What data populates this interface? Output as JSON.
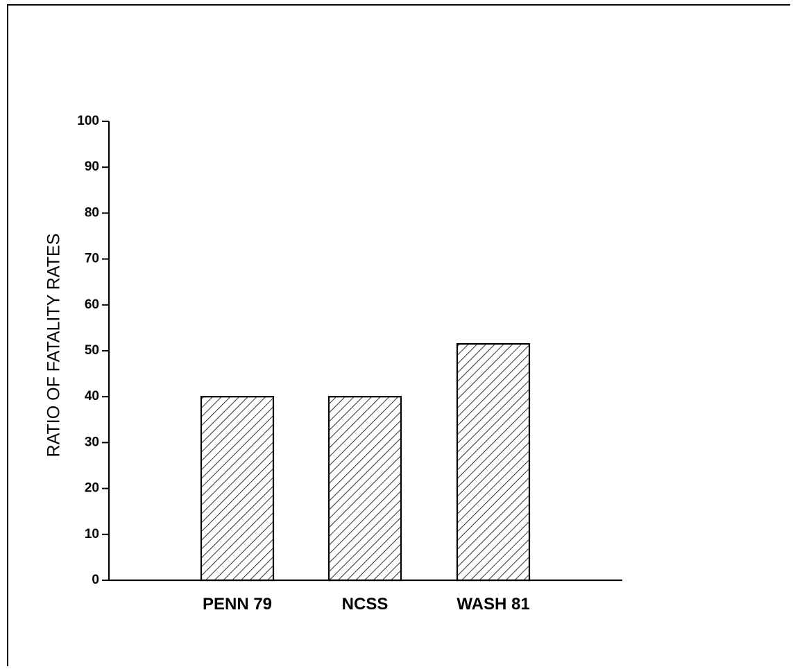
{
  "chart_data": {
    "type": "bar",
    "title": "",
    "xlabel": "",
    "ylabel": "RATIO OF FATALITY RATES",
    "categories": [
      "PENN 79",
      "NCSS",
      "WASH 81"
    ],
    "values": [
      40,
      40,
      51.5
    ],
    "ylim": [
      0,
      100
    ],
    "yticks": [
      0,
      10,
      20,
      30,
      40,
      50,
      60,
      70,
      80,
      90,
      100
    ],
    "grid": false,
    "fill_pattern": "diagonal-hatch",
    "colors": {
      "bar_fill": "#ffffff",
      "hatch": "#000000",
      "axis": "#000000"
    }
  }
}
